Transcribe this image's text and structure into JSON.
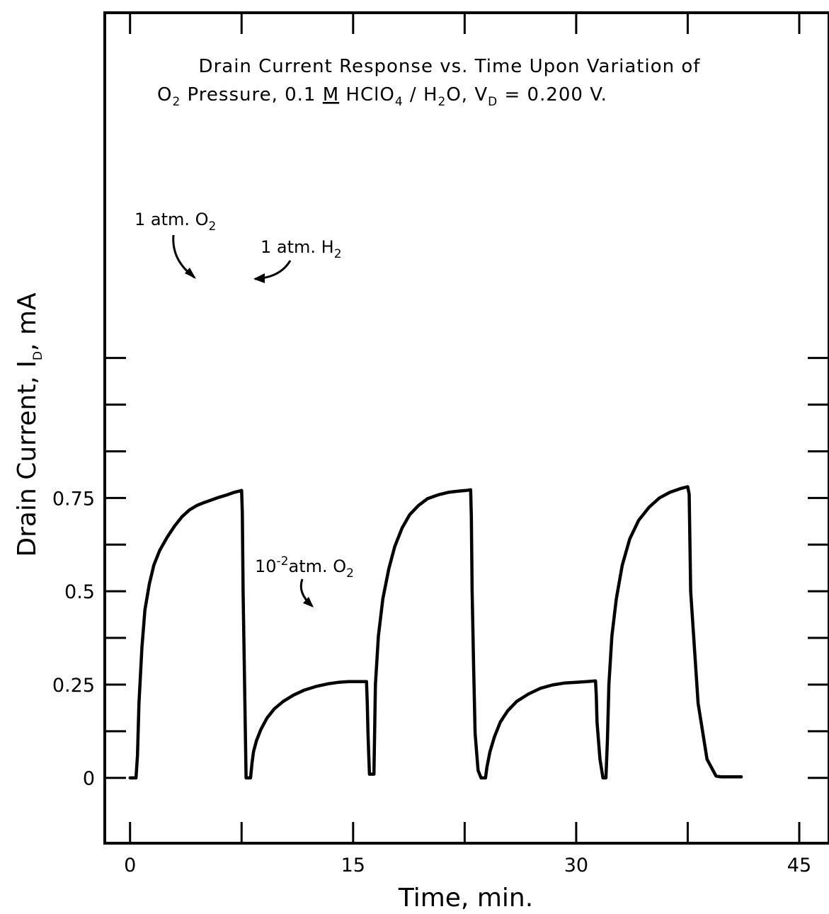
{
  "chart_data": {
    "type": "line",
    "title_line1": "Drain Current Response vs. Time Upon Variation of",
    "title_line2": {
      "o": "O",
      "o_sub": "2",
      "pressure": " Pressure, 0.1 ",
      "m": "M",
      "hclo": " HClO",
      "hclo_sub": "4",
      "slash_h": " / H",
      "h_sub": "2",
      "o2": "O, V",
      "v_sub": "D",
      "vd_value": " = 0.200 V."
    },
    "xlabel": "Time, min.",
    "ylabel_main": "Drain Current, I",
    "ylabel_sub": "D",
    "ylabel_unit": ", mA",
    "xlim": [
      -1.7,
      47
    ],
    "ylim": [
      -0.175,
      2.05
    ],
    "x_ticks": [
      0,
      15,
      30,
      45
    ],
    "x_tick_labels": [
      "0",
      "15",
      "30",
      "45"
    ],
    "x_minor_ticks": [
      7.5,
      22.5,
      37.5
    ],
    "y_ticks": [
      0,
      0.25,
      0.5,
      0.75
    ],
    "y_tick_labels": [
      "0",
      "0.25",
      "0.5",
      "0.75"
    ],
    "y_minor_ticks": [
      0.125,
      0.375,
      0.625,
      0.875,
      1.0,
      1.125
    ],
    "grid": false,
    "legend": "none",
    "annotations": [
      {
        "key": "o2_high",
        "main": "1 atm. O",
        "sub": "2"
      },
      {
        "key": "h2",
        "main": "1 atm. H",
        "sub": "2"
      },
      {
        "key": "o2_low",
        "pre": "10",
        "sup": "-2",
        "main": "atm. O",
        "sub": "2"
      }
    ],
    "series": [
      {
        "x": [
          0.0,
          0.4,
          0.5,
          0.6,
          0.8,
          1.0,
          1.3,
          1.6,
          2.0,
          2.5,
          3.0,
          3.5,
          4.0,
          4.5,
          5.0,
          5.5,
          6.0,
          6.5,
          7.0,
          7.5,
          7.55,
          7.6,
          7.7,
          7.8,
          8.1,
          8.2,
          8.3,
          8.5,
          8.8,
          9.2,
          9.7,
          10.3,
          11.0,
          11.7,
          12.5,
          13.3,
          14.0,
          14.7,
          15.3,
          15.9,
          15.95,
          16.0,
          16.05,
          16.1,
          16.4,
          16.5,
          16.7,
          17.0,
          17.4,
          17.8,
          18.3,
          18.8,
          19.4,
          20.0,
          20.7,
          21.4,
          22.0,
          22.6,
          22.9,
          22.95,
          23.0,
          23.1,
          23.2,
          23.4,
          23.6,
          23.9,
          24.0,
          24.2,
          24.5,
          24.9,
          25.4,
          26.0,
          26.8,
          27.6,
          28.4,
          29.2,
          30.0,
          30.7,
          31.3,
          31.35,
          31.4,
          31.5,
          31.6,
          31.8,
          32.0,
          32.1,
          32.2,
          32.4,
          32.7,
          33.1,
          33.6,
          34.2,
          34.9,
          35.6,
          36.3,
          37.0,
          37.5,
          37.6,
          37.7,
          38.2,
          38.8,
          39.4,
          39.7,
          40.0,
          41.1
        ],
        "values": [
          0.0,
          0.0,
          0.06,
          0.2,
          0.35,
          0.45,
          0.52,
          0.57,
          0.61,
          0.645,
          0.675,
          0.7,
          0.718,
          0.73,
          0.738,
          0.745,
          0.752,
          0.758,
          0.765,
          0.77,
          0.71,
          0.5,
          0.25,
          0.0,
          0.0,
          0.04,
          0.07,
          0.1,
          0.13,
          0.16,
          0.185,
          0.205,
          0.222,
          0.235,
          0.245,
          0.252,
          0.256,
          0.258,
          0.258,
          0.258,
          0.2,
          0.12,
          0.06,
          0.01,
          0.01,
          0.25,
          0.38,
          0.48,
          0.56,
          0.62,
          0.67,
          0.705,
          0.73,
          0.748,
          0.758,
          0.765,
          0.768,
          0.77,
          0.772,
          0.7,
          0.5,
          0.3,
          0.12,
          0.02,
          0.0,
          0.0,
          0.03,
          0.07,
          0.11,
          0.15,
          0.18,
          0.205,
          0.225,
          0.24,
          0.249,
          0.254,
          0.256,
          0.258,
          0.26,
          0.22,
          0.15,
          0.1,
          0.05,
          0.0,
          0.0,
          0.1,
          0.25,
          0.38,
          0.48,
          0.57,
          0.64,
          0.69,
          0.725,
          0.75,
          0.765,
          0.775,
          0.78,
          0.76,
          0.5,
          0.2,
          0.05,
          0.005,
          0.003,
          0.003,
          0.003
        ]
      }
    ]
  }
}
